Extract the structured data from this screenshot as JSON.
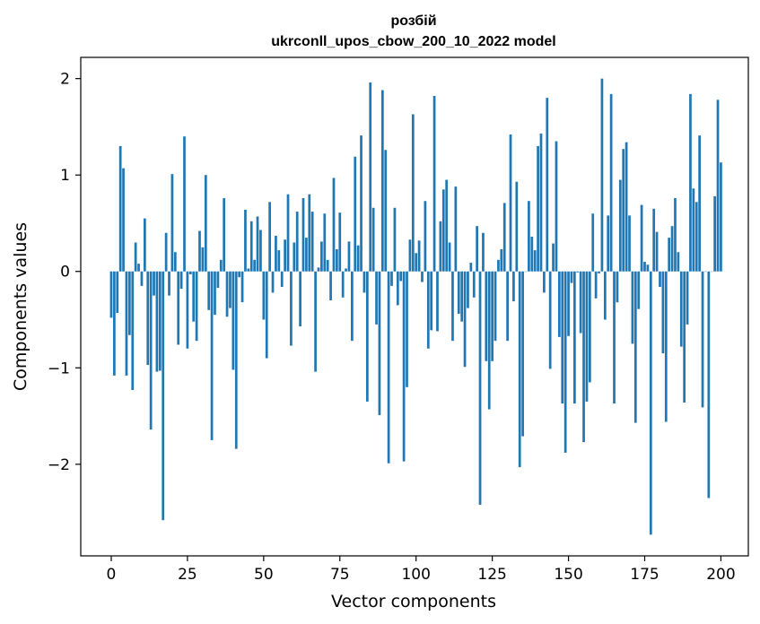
{
  "chart_data": {
    "type": "bar",
    "title_line1": "розбій",
    "title_line2": "ukrconll_upos_cbow_200_10_2022 model",
    "xlabel": "Vector components",
    "ylabel": "Components values",
    "xlim": [
      -10,
      209
    ],
    "ylim": [
      -2.95,
      2.22
    ],
    "xticks": [
      {
        "value": 0,
        "label": "0"
      },
      {
        "value": 25,
        "label": "25"
      },
      {
        "value": 50,
        "label": "50"
      },
      {
        "value": 75,
        "label": "75"
      },
      {
        "value": 100,
        "label": "100"
      },
      {
        "value": 125,
        "label": "125"
      },
      {
        "value": 150,
        "label": "150"
      },
      {
        "value": 175,
        "label": "175"
      },
      {
        "value": 200,
        "label": "200"
      }
    ],
    "yticks": [
      {
        "value": -2,
        "label": "−2"
      },
      {
        "value": -1,
        "label": "−1"
      },
      {
        "value": 0,
        "label": "0"
      },
      {
        "value": 1,
        "label": "1"
      },
      {
        "value": 2,
        "label": "2"
      }
    ],
    "bar_color": "#1f77b4",
    "grid": false,
    "values": [
      -0.48,
      -1.08,
      -0.43,
      1.3,
      1.07,
      -1.08,
      -0.66,
      -1.23,
      0.3,
      0.08,
      -0.15,
      0.55,
      -0.97,
      -1.64,
      -0.25,
      -1.04,
      -1.03,
      -2.58,
      0.4,
      -0.25,
      1.01,
      0.2,
      -0.76,
      -0.18,
      1.4,
      -0.8,
      -0.03,
      -0.52,
      -0.72,
      0.42,
      0.25,
      1.0,
      -0.4,
      -1.75,
      -0.45,
      -0.17,
      0.12,
      0.76,
      -0.47,
      -0.38,
      -1.02,
      -1.84,
      -0.06,
      -0.32,
      0.64,
      0.03,
      0.52,
      0.12,
      0.57,
      0.43,
      -0.5,
      -0.9,
      0.72,
      -0.22,
      0.37,
      0.22,
      -0.16,
      0.33,
      0.8,
      -0.77,
      0.3,
      0.62,
      -0.57,
      0.76,
      0.35,
      0.8,
      0.62,
      -1.04,
      0.04,
      0.31,
      0.6,
      0.12,
      -0.3,
      0.97,
      0.23,
      0.61,
      -0.27,
      0.03,
      0.31,
      -0.72,
      1.19,
      0.27,
      1.41,
      -0.22,
      -1.35,
      1.96,
      0.66,
      -0.55,
      -1.49,
      1.88,
      1.26,
      -1.99,
      -0.15,
      0.66,
      -0.35,
      -0.1,
      -1.97,
      -1.2,
      0.33,
      1.63,
      0.19,
      0.32,
      -0.11,
      0.73,
      -0.8,
      -0.61,
      1.82,
      -0.62,
      0.52,
      0.85,
      0.95,
      0.3,
      -0.72,
      0.88,
      -0.44,
      -0.52,
      -0.99,
      -0.38,
      0.09,
      -0.27,
      0.47,
      -2.42,
      0.4,
      -0.93,
      -1.43,
      -0.93,
      -0.72,
      0.12,
      0.23,
      0.71,
      -0.72,
      1.42,
      -0.31,
      0.93,
      -2.03,
      -1.71,
      0.0,
      0.73,
      0.36,
      0.22,
      1.3,
      1.43,
      -0.22,
      1.8,
      -1.01,
      0.29,
      1.35,
      -0.68,
      -1.37,
      -1.88,
      -0.67,
      -0.12,
      -1.37,
      -0.01,
      -0.64,
      -1.77,
      -1.35,
      -1.15,
      0.6,
      -0.28,
      -0.02,
      2.0,
      -0.5,
      0.58,
      1.84,
      -1.37,
      -0.32,
      0.95,
      1.27,
      1.34,
      0.58,
      -0.75,
      -1.57,
      -0.39,
      0.69,
      0.1,
      0.07,
      -2.73,
      0.65,
      0.41,
      -0.16,
      -0.85,
      -1.56,
      0.35,
      0.47,
      0.76,
      0.2,
      -0.78,
      -1.36,
      -0.55,
      1.84,
      0.86,
      0.72,
      1.41,
      -1.41,
      0.0,
      -2.35,
      0.0,
      0.78,
      1.78,
      1.13
    ]
  }
}
